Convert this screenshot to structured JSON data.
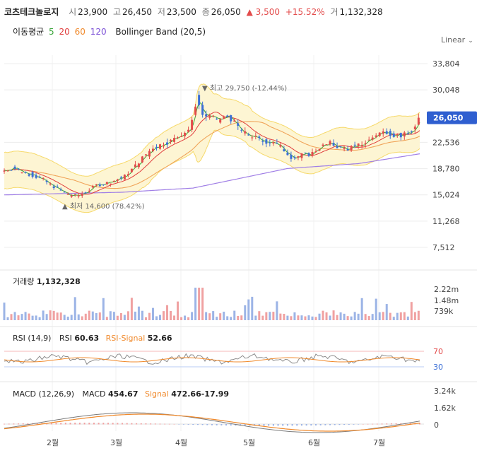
{
  "header": {
    "name": "코츠테크놀로지",
    "open_label": "시",
    "open": "23,900",
    "high_label": "고",
    "high": "26,450",
    "low_label": "저",
    "low": "23,500",
    "close_label": "종",
    "close": "26,050",
    "change": "▲ 3,500",
    "change_pct": "+15.52%",
    "volume_label": "거",
    "volume": "1,132,328"
  },
  "ma_legend": {
    "label": "이동평균",
    "p5": "5",
    "p20": "20",
    "p60": "60",
    "p120": "120",
    "bb": "Bollinger Band (20,5)",
    "colors": {
      "p5": "#3aa53a",
      "p20": "#e03c3c",
      "p60": "#f0892b",
      "p120": "#7b4fd6",
      "bb": "#f6d96a"
    }
  },
  "scale_label": "Linear",
  "colors": {
    "up": "#e34b4b",
    "down": "#3b6fd6",
    "bb_fill": "#fdf5d3",
    "bb_line": "#f6d96a"
  },
  "price_ticks": [
    "33,804",
    "30,048",
    "26,050",
    "22,536",
    "18,780",
    "15,024",
    "11,268",
    "7,512"
  ],
  "annotations": {
    "high": "▼ 최고 29,750 (-12.44%)",
    "low": "▲ 최저 14,600 (78.42%)"
  },
  "volume_panel": {
    "label": "거래량",
    "value": "1,132,328",
    "ticks": [
      "2.22m",
      "1.48m",
      "739k"
    ]
  },
  "rsi_panel": {
    "label": "RSI (14,9)",
    "rsi_label": "RSI",
    "rsi": "60.63",
    "signal_label": "RSI-Signal",
    "signal": "52.66",
    "levels": [
      "70",
      "30"
    ]
  },
  "macd_panel": {
    "label": "MACD (12,26,9)",
    "macd_label": "MACD",
    "macd": "454.67",
    "signal_label": "Signal",
    "signal": "472.66-17.99",
    "ticks": [
      "3.24k",
      "1.62k",
      "0"
    ]
  },
  "x_ticks": [
    "2월",
    "3월",
    "4월",
    "5월",
    "6월",
    "7월"
  ],
  "chart_data": {
    "type": "candlestick",
    "x_ticks": [
      "2월",
      "3월",
      "4월",
      "5월",
      "6월",
      "7월"
    ],
    "ylim": [
      7512,
      33804
    ],
    "current": 26050,
    "high": 29750,
    "low": 14600,
    "approx_close_path": [
      [
        0,
        18500
      ],
      [
        8,
        18900
      ],
      [
        16,
        18300
      ],
      [
        24,
        17800
      ],
      [
        32,
        17300
      ],
      [
        40,
        16400
      ],
      [
        48,
        15600
      ],
      [
        56,
        15000
      ],
      [
        62,
        14900
      ],
      [
        70,
        15500
      ],
      [
        78,
        16400
      ],
      [
        86,
        16700
      ],
      [
        94,
        17100
      ],
      [
        102,
        17700
      ],
      [
        110,
        19000
      ],
      [
        118,
        20500
      ],
      [
        126,
        21800
      ],
      [
        134,
        22300
      ],
      [
        142,
        22800
      ],
      [
        150,
        23700
      ],
      [
        158,
        24600
      ],
      [
        163,
        28800
      ],
      [
        168,
        26500
      ],
      [
        176,
        26000
      ],
      [
        184,
        25800
      ],
      [
        190,
        26300
      ],
      [
        196,
        25100
      ],
      [
        204,
        23800
      ],
      [
        212,
        23300
      ],
      [
        220,
        22600
      ],
      [
        228,
        22700
      ],
      [
        236,
        21600
      ],
      [
        244,
        20300
      ],
      [
        252,
        20700
      ],
      [
        260,
        20900
      ],
      [
        268,
        21900
      ],
      [
        276,
        22400
      ],
      [
        284,
        21800
      ],
      [
        292,
        21600
      ],
      [
        300,
        22100
      ],
      [
        308,
        22700
      ],
      [
        316,
        23800
      ],
      [
        324,
        24100
      ],
      [
        330,
        23600
      ],
      [
        336,
        23500
      ],
      [
        342,
        23700
      ],
      [
        348,
        24700
      ],
      [
        352,
        26050
      ]
    ],
    "ma120_path": [
      [
        0,
        15024
      ],
      [
        100,
        15400
      ],
      [
        160,
        16000
      ],
      [
        240,
        18800
      ],
      [
        300,
        19500
      ],
      [
        352,
        20900
      ]
    ]
  }
}
